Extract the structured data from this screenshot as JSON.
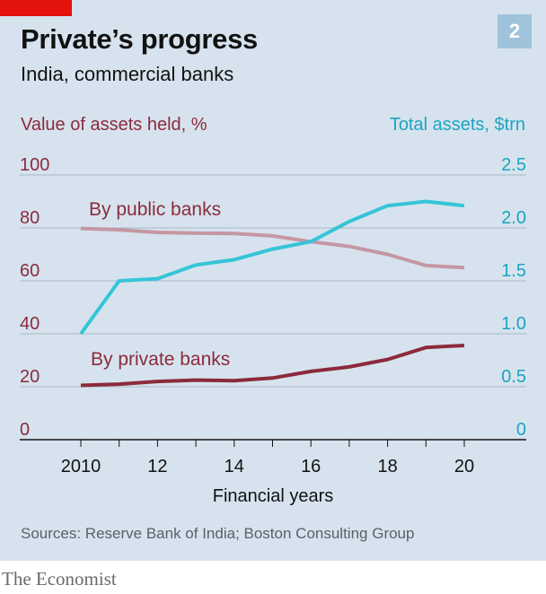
{
  "header": {
    "badge": "2",
    "title": "Private’s progress",
    "subtitle": "India, commercial banks"
  },
  "footer": {
    "source": "Sources: Reserve Bank of India; Boston Consulting Group",
    "brand": "The Economist"
  },
  "colors": {
    "panel_bg": "#d6e3ee",
    "brand_red": "#e3120b",
    "public_line": "#c497a3",
    "private_line": "#8c2a3c",
    "total_assets_line": "#36c4d8",
    "left_axis_text": "#8c2a3c",
    "right_axis_text": "#1ca4c1",
    "grid": "#a8b8c6"
  },
  "chart_data": {
    "type": "line",
    "xlabel": "Financial years",
    "x": [
      2010,
      2011,
      2012,
      2013,
      2014,
      2015,
      2016,
      2017,
      2018,
      2019,
      2020
    ],
    "x_ticks": [
      2010,
      2012,
      2014,
      2016,
      2018,
      2020
    ],
    "x_tick_labels": [
      "2010",
      "12",
      "14",
      "16",
      "18",
      "20"
    ],
    "xlim": [
      2010,
      2020
    ],
    "y_left": {
      "label": "Value of assets held, %",
      "ylim": [
        0,
        100
      ],
      "ticks": [
        0,
        20,
        40,
        60,
        80,
        100
      ]
    },
    "y_right": {
      "label": "Total assets, $trn",
      "ylim": [
        0,
        2.5
      ],
      "ticks": [
        0,
        0.5,
        1.0,
        1.5,
        2.0,
        2.5
      ],
      "tick_labels": [
        "0",
        "0.5",
        "1.0",
        "1.5",
        "2.0",
        "2.5"
      ]
    },
    "grid": true,
    "series": [
      {
        "name": "By public banks",
        "axis": "left",
        "values": [
          79.8,
          79.3,
          78.3,
          78.0,
          77.9,
          77.0,
          74.8,
          73.0,
          70.0,
          65.8,
          65.0
        ]
      },
      {
        "name": "By private banks",
        "axis": "left",
        "values": [
          20.5,
          21.0,
          22.0,
          22.5,
          22.3,
          23.3,
          25.8,
          27.5,
          30.3,
          34.8,
          35.6
        ]
      },
      {
        "name": "",
        "axis": "right",
        "values": [
          1.0,
          1.5,
          1.52,
          1.65,
          1.7,
          1.8,
          1.87,
          2.06,
          2.21,
          2.25,
          2.21
        ]
      }
    ]
  }
}
